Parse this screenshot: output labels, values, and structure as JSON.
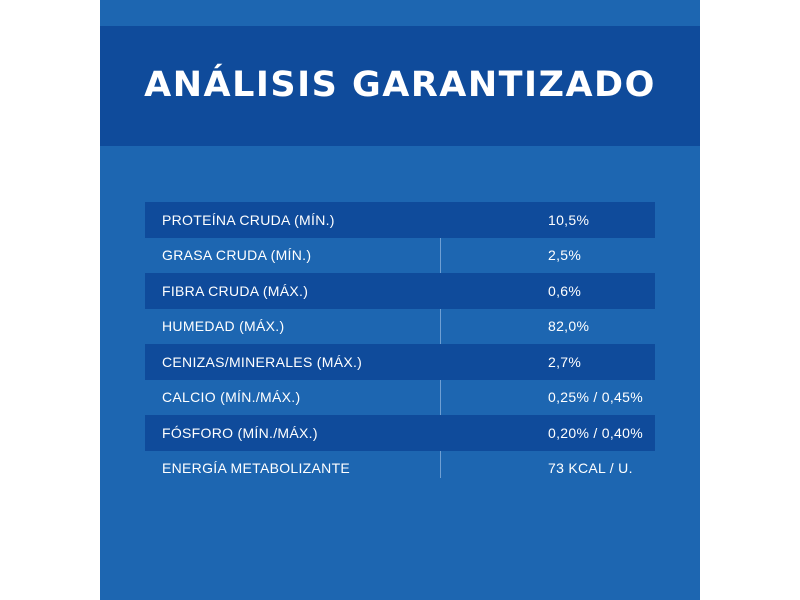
{
  "title": "ANÁLISIS GARANTIZADO",
  "rows": [
    {
      "label": "PROTEÍNA CRUDA (MÍN.)",
      "value": "10,5%"
    },
    {
      "label": "GRASA CRUDA (MÍN.)",
      "value": "2,5%"
    },
    {
      "label": "FIBRA CRUDA (MÁX.)",
      "value": "0,6%"
    },
    {
      "label": "HUMEDAD (MÁX.)",
      "value": "82,0%"
    },
    {
      "label": "CENIZAS/MINERALES (MÁX.)",
      "value": "2,7%"
    },
    {
      "label": "CALCIO (MÍN./MÁX.)",
      "value": "0,25% / 0,45%"
    },
    {
      "label": "FÓSFORO (MÍN./MÁX.)",
      "value": "0,20% / 0,40%"
    },
    {
      "label": "ENERGÍA METABOLIZANTE",
      "value": "73 KCAL / U."
    }
  ],
  "colors": {
    "panel": "#1d66b1",
    "header": "#0f4b9b",
    "shaded_row": "#0f4b9b",
    "text": "#ffffff"
  }
}
